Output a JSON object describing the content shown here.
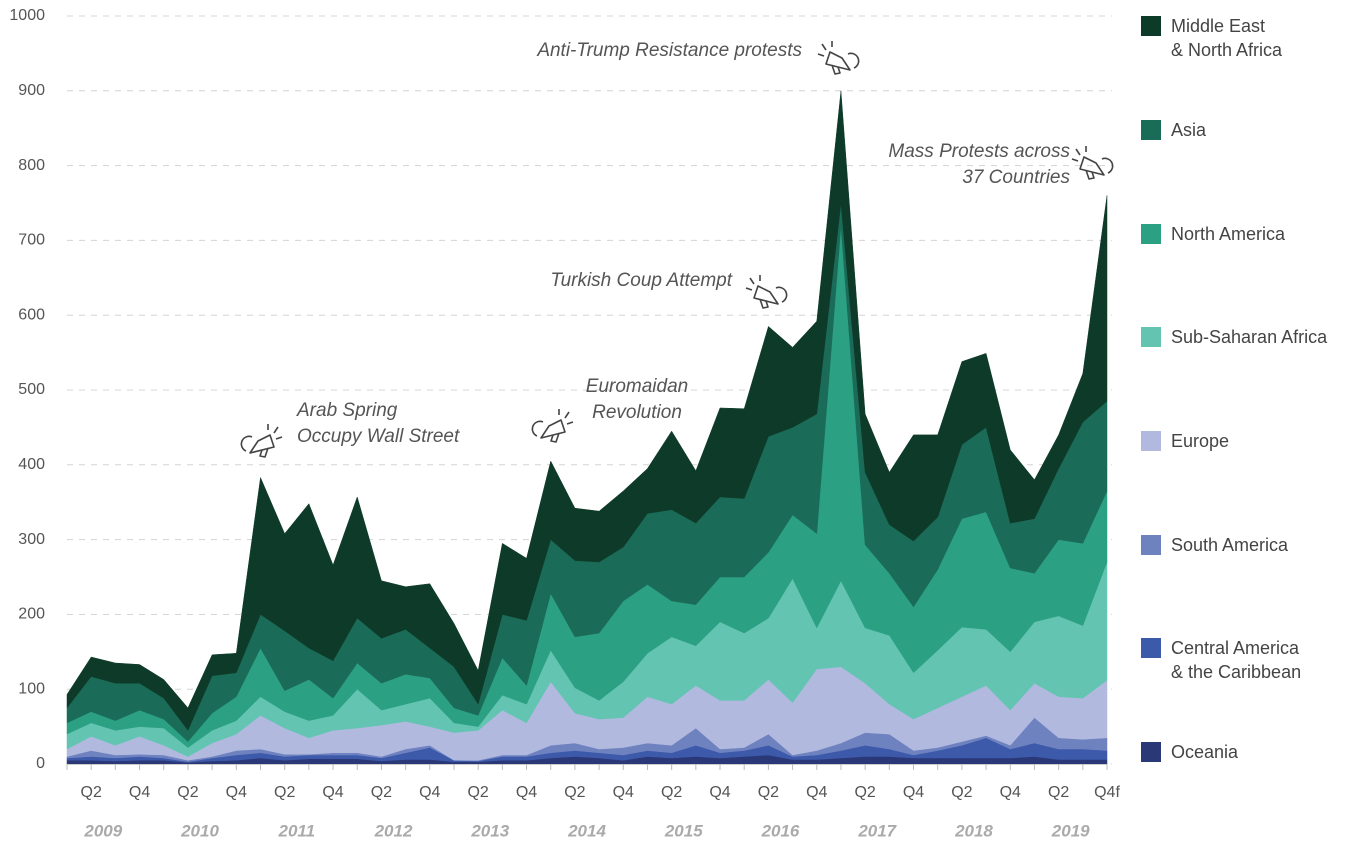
{
  "chart_data": {
    "type": "stacked_area",
    "categories": [
      null,
      "Q2",
      null,
      "Q4",
      null,
      "Q2",
      null,
      "Q4",
      null,
      "Q2",
      null,
      "Q4",
      null,
      "Q2",
      null,
      "Q4",
      null,
      "Q2",
      null,
      "Q4",
      null,
      "Q2",
      null,
      "Q4",
      null,
      "Q2",
      null,
      "Q4",
      null,
      "Q2",
      null,
      "Q4",
      null,
      "Q2",
      null,
      "Q4",
      null,
      "Q2",
      null,
      "Q4",
      null,
      "Q2",
      null,
      "Q4f"
    ],
    "year_labels": [
      "2009",
      "2010",
      "2011",
      "2012",
      "2013",
      "2014",
      "2015",
      "2016",
      "2017",
      "2018",
      "2019"
    ],
    "ylim": [
      0,
      1000
    ],
    "yticks": [
      0,
      100,
      200,
      300,
      400,
      500,
      600,
      700,
      800,
      900,
      1000
    ],
    "grid": true,
    "series": [
      {
        "name": "Oceania",
        "color": "#2b3877",
        "values": [
          5,
          5,
          4,
          5,
          5,
          2,
          4,
          5,
          8,
          5,
          7,
          7,
          7,
          4,
          6,
          6,
          3,
          3,
          5,
          5,
          8,
          10,
          8,
          5,
          10,
          8,
          10,
          8,
          10,
          12,
          6,
          6,
          8,
          10,
          10,
          8,
          8,
          8,
          8,
          8,
          10,
          6,
          6,
          6
        ]
      },
      {
        "name": "Central America\n& the Caribbean",
        "color": "#3d59aa",
        "values": [
          3,
          5,
          4,
          5,
          3,
          1,
          4,
          7,
          7,
          5,
          5,
          5,
          5,
          4,
          9,
          16,
          2,
          1,
          5,
          5,
          7,
          8,
          7,
          7,
          8,
          7,
          15,
          7,
          8,
          13,
          4,
          6,
          10,
          15,
          10,
          4,
          10,
          17,
          27,
          12,
          18,
          14,
          14,
          12
        ]
      },
      {
        "name": "South America",
        "color": "#6f82c0",
        "values": [
          2,
          8,
          4,
          3,
          4,
          2,
          2,
          6,
          5,
          3,
          1,
          3,
          3,
          2,
          5,
          3,
          0,
          1,
          2,
          2,
          10,
          10,
          5,
          10,
          10,
          10,
          23,
          5,
          4,
          15,
          2,
          6,
          10,
          17,
          20,
          6,
          4,
          5,
          3,
          5,
          34,
          15,
          13,
          17
        ]
      },
      {
        "name": "Europe",
        "color": "#b1b9df",
        "values": [
          10,
          19,
          13,
          24,
          13,
          5,
          18,
          22,
          45,
          35,
          22,
          30,
          33,
          42,
          37,
          25,
          37,
          40,
          60,
          43,
          85,
          40,
          40,
          40,
          62,
          55,
          57,
          65,
          63,
          73,
          70,
          109,
          102,
          66,
          40,
          42,
          53,
          60,
          67,
          47,
          46,
          55,
          55,
          77
        ]
      },
      {
        "name": "Sub-Saharan Africa",
        "color": "#63c4b2",
        "values": [
          20,
          18,
          20,
          13,
          23,
          12,
          17,
          18,
          25,
          22,
          23,
          20,
          52,
          20,
          23,
          38,
          13,
          5,
          20,
          25,
          42,
          34,
          25,
          48,
          58,
          90,
          53,
          105,
          90,
          82,
          166,
          55,
          115,
          74,
          92,
          62,
          77,
          93,
          75,
          78,
          82,
          108,
          97,
          158
        ]
      },
      {
        "name": "North America",
        "color": "#2ba083",
        "values": [
          15,
          15,
          13,
          22,
          12,
          8,
          23,
          32,
          65,
          28,
          55,
          23,
          35,
          36,
          40,
          27,
          20,
          15,
          50,
          25,
          76,
          68,
          90,
          108,
          92,
          48,
          55,
          60,
          75,
          88,
          85,
          126,
          475,
          111,
          83,
          88,
          108,
          145,
          157,
          112,
          65,
          102,
          110,
          95
        ]
      },
      {
        "name": "Asia",
        "color": "#1a6b57",
        "values": [
          20,
          47,
          50,
          36,
          28,
          15,
          50,
          32,
          45,
          80,
          42,
          50,
          60,
          60,
          60,
          40,
          55,
          15,
          58,
          87,
          72,
          102,
          95,
          72,
          95,
          122,
          109,
          107,
          105,
          155,
          117,
          160,
          30,
          97,
          65,
          88,
          70,
          99,
          113,
          60,
          73,
          95,
          162,
          120
        ]
      },
      {
        "name": "Middle East\n& North Africa",
        "color": "#0e3b29",
        "values": [
          18,
          26,
          27,
          25,
          25,
          30,
          28,
          26,
          183,
          130,
          193,
          128,
          162,
          77,
          57,
          86,
          58,
          45,
          95,
          83,
          105,
          70,
          68,
          75,
          60,
          105,
          70,
          119,
          120,
          147,
          107,
          124,
          150,
          78,
          70,
          142,
          110,
          111,
          99,
          98,
          52,
          45,
          65,
          275
        ]
      }
    ],
    "annotations": [
      {
        "lines": [
          "Arab Spring",
          "Occupy Wall Street"
        ]
      },
      {
        "lines": [
          "Euromaidan",
          "Revolution"
        ]
      },
      {
        "lines": [
          "Turkish Coup Attempt"
        ]
      },
      {
        "lines": [
          "Anti-Trump Resistance protests"
        ]
      },
      {
        "lines": [
          "Mass Protests across",
          "37 Countries"
        ]
      }
    ]
  }
}
